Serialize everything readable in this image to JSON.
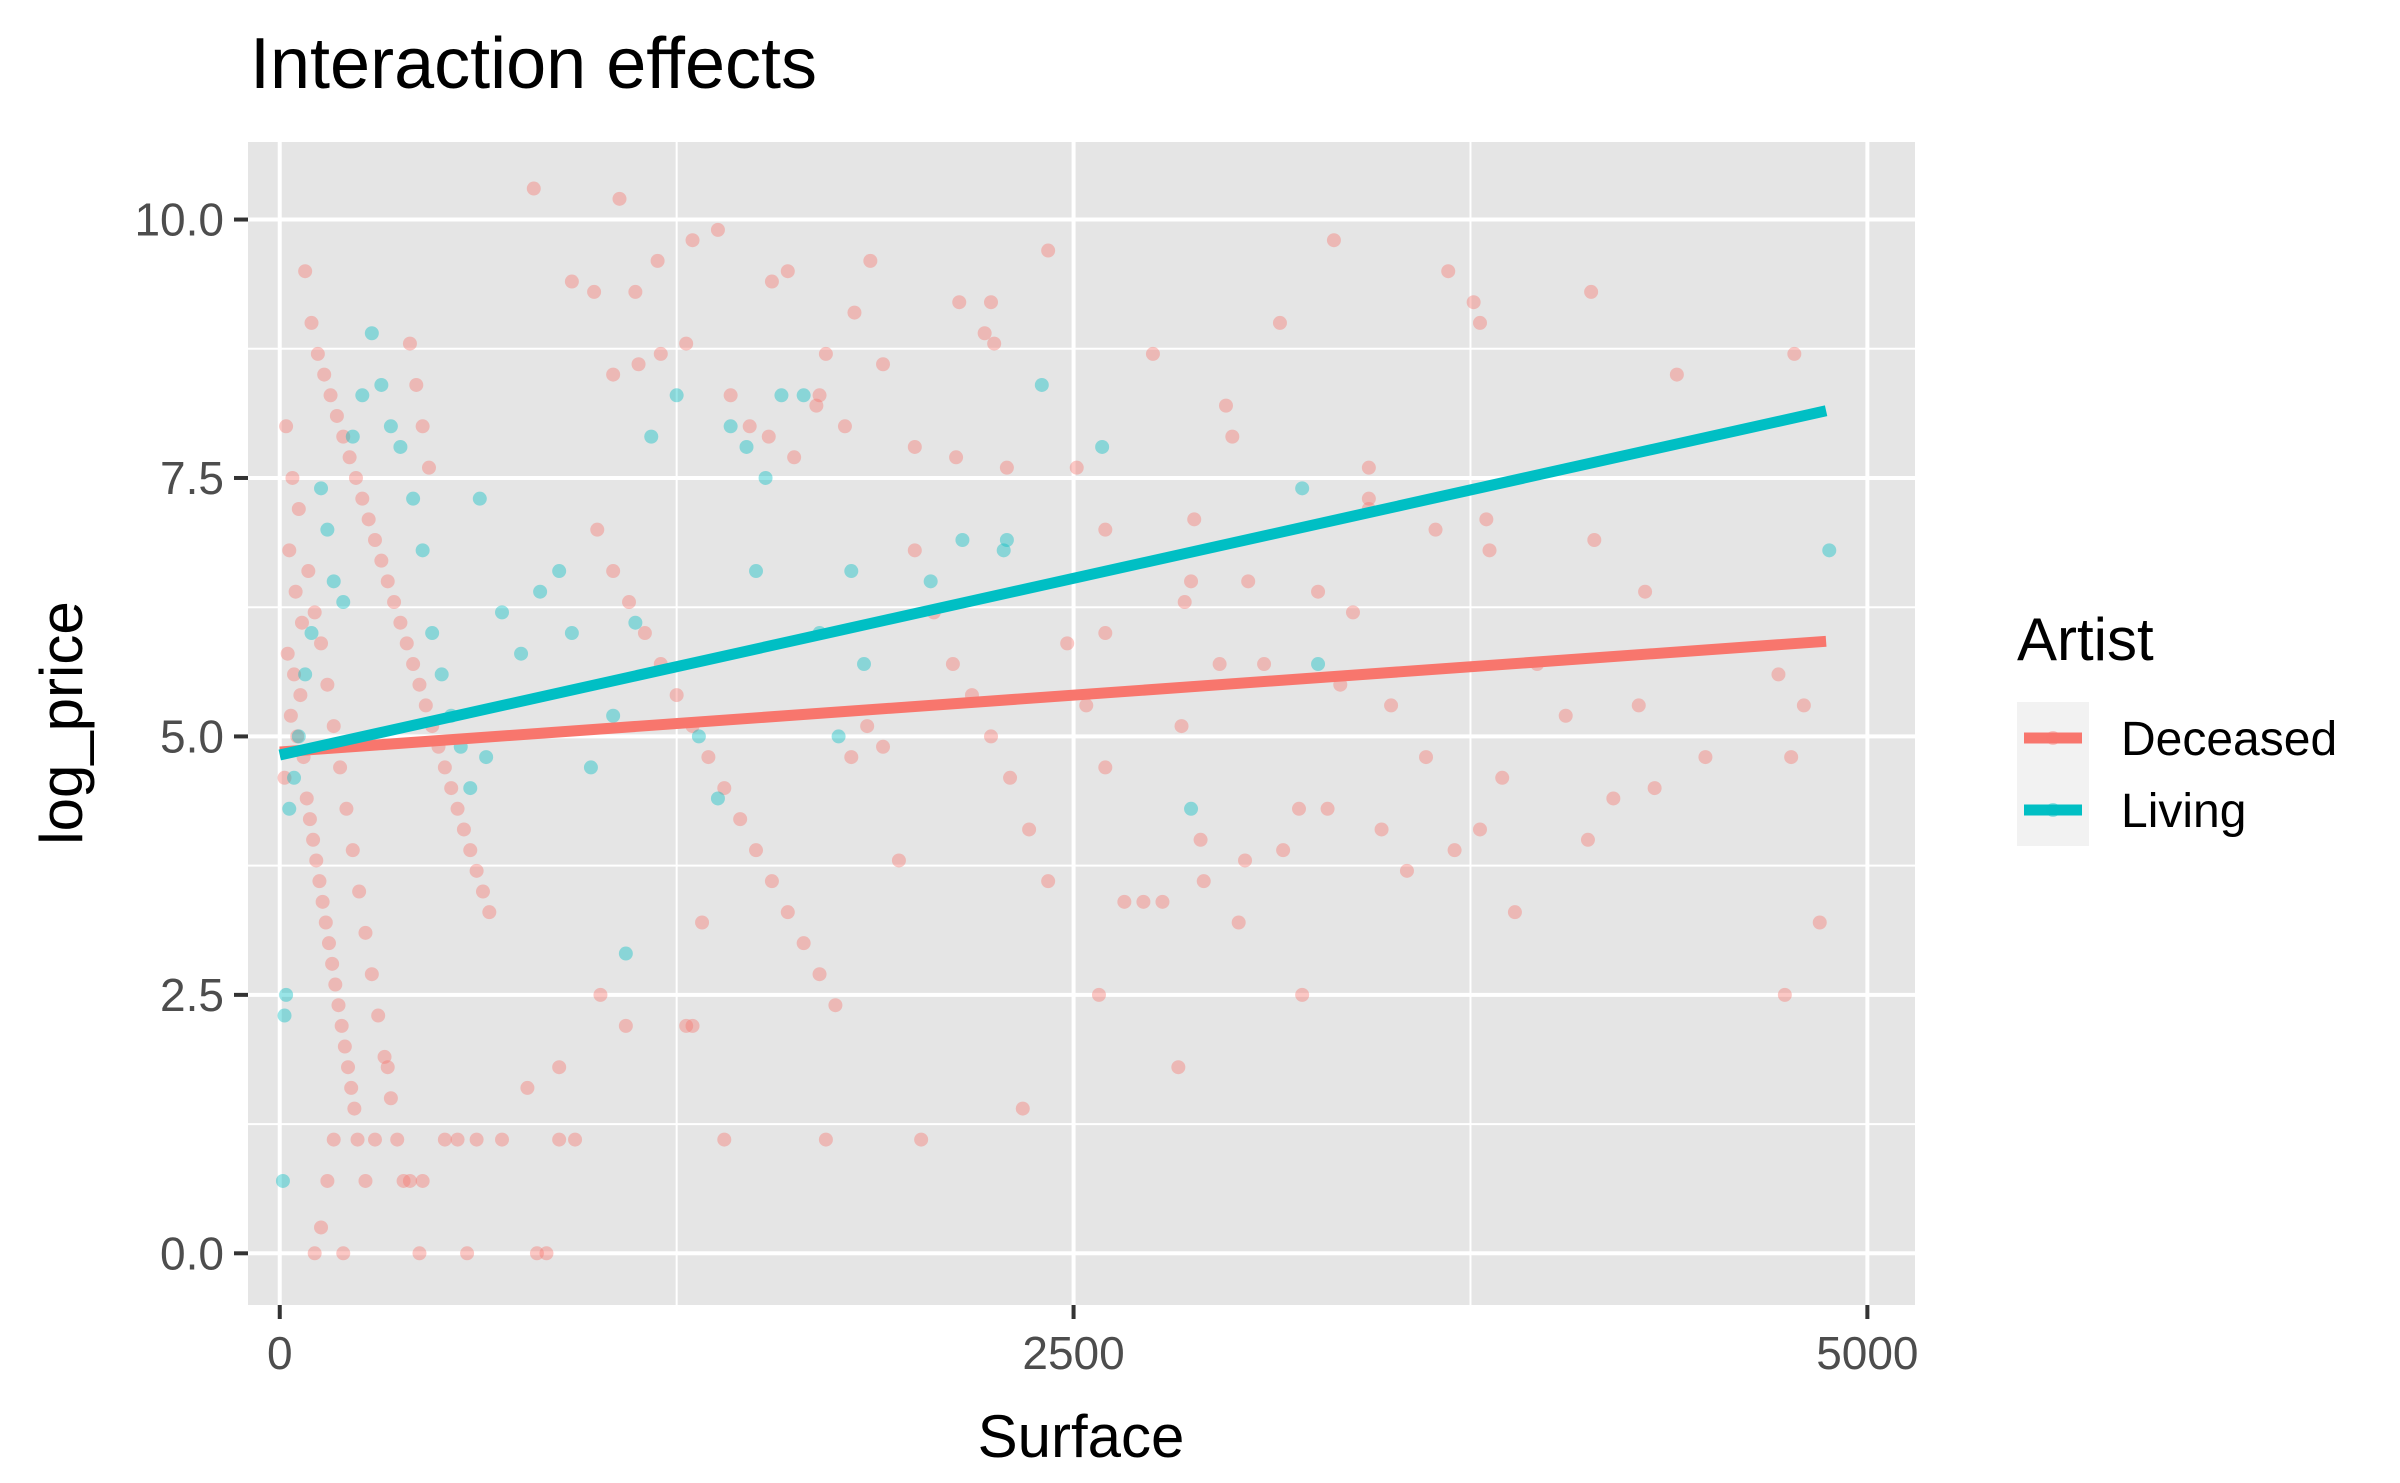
{
  "chart_data": {
    "type": "scatter",
    "title": "Interaction effects",
    "xlabel": "Surface",
    "ylabel": "log_price",
    "xlim": [
      -100,
      5150
    ],
    "ylim": [
      -0.5,
      10.75
    ],
    "x_ticks": [
      0,
      2500,
      5000
    ],
    "x_tick_labels": [
      "0",
      "2500",
      "5000"
    ],
    "y_ticks": [
      0,
      2.5,
      5,
      7.5,
      10
    ],
    "y_tick_labels": [
      "0.0",
      "2.5",
      "5.0",
      "7.5",
      "10.0"
    ],
    "grid": true,
    "panel_background": "#e5e5e5",
    "legend": {
      "title": "Artist",
      "position": "right",
      "entries": [
        {
          "label": "Deceased",
          "color": "#f8766d"
        },
        {
          "label": "Living",
          "color": "#00bfc4"
        }
      ]
    },
    "series": [
      {
        "name": "Deceased",
        "color": "#f8766d",
        "fit_line": {
          "x": [
            0,
            4870
          ],
          "y": [
            4.85,
            5.92
          ]
        },
        "points": [
          [
            20,
            8.0
          ],
          [
            40,
            7.5
          ],
          [
            60,
            7.2
          ],
          [
            30,
            6.8
          ],
          [
            50,
            6.4
          ],
          [
            70,
            6.1
          ],
          [
            25,
            5.8
          ],
          [
            45,
            5.6
          ],
          [
            65,
            5.4
          ],
          [
            35,
            5.2
          ],
          [
            55,
            5.0
          ],
          [
            75,
            4.8
          ],
          [
            15,
            4.6
          ],
          [
            85,
            4.4
          ],
          [
            95,
            4.2
          ],
          [
            105,
            4.0
          ],
          [
            115,
            3.8
          ],
          [
            125,
            3.6
          ],
          [
            135,
            3.4
          ],
          [
            145,
            3.2
          ],
          [
            155,
            3.0
          ],
          [
            165,
            2.8
          ],
          [
            175,
            2.6
          ],
          [
            185,
            2.4
          ],
          [
            195,
            2.2
          ],
          [
            205,
            2.0
          ],
          [
            215,
            1.8
          ],
          [
            225,
            1.6
          ],
          [
            235,
            1.4
          ],
          [
            245,
            1.1
          ],
          [
            80,
            9.5
          ],
          [
            100,
            9.0
          ],
          [
            120,
            8.7
          ],
          [
            140,
            8.5
          ],
          [
            160,
            8.3
          ],
          [
            180,
            8.1
          ],
          [
            200,
            7.9
          ],
          [
            220,
            7.7
          ],
          [
            240,
            7.5
          ],
          [
            260,
            7.3
          ],
          [
            280,
            7.1
          ],
          [
            300,
            6.9
          ],
          [
            320,
            6.7
          ],
          [
            340,
            6.5
          ],
          [
            360,
            6.3
          ],
          [
            380,
            6.1
          ],
          [
            400,
            5.9
          ],
          [
            420,
            5.7
          ],
          [
            440,
            5.5
          ],
          [
            460,
            5.3
          ],
          [
            480,
            5.1
          ],
          [
            500,
            4.9
          ],
          [
            520,
            4.7
          ],
          [
            540,
            4.5
          ],
          [
            560,
            4.3
          ],
          [
            580,
            4.1
          ],
          [
            600,
            3.9
          ],
          [
            620,
            3.7
          ],
          [
            640,
            3.5
          ],
          [
            660,
            3.3
          ],
          [
            90,
            6.6
          ],
          [
            110,
            6.2
          ],
          [
            130,
            5.9
          ],
          [
            150,
            5.5
          ],
          [
            170,
            5.1
          ],
          [
            190,
            4.7
          ],
          [
            210,
            4.3
          ],
          [
            230,
            3.9
          ],
          [
            250,
            3.5
          ],
          [
            270,
            3.1
          ],
          [
            290,
            2.7
          ],
          [
            310,
            2.3
          ],
          [
            330,
            1.9
          ],
          [
            350,
            1.5
          ],
          [
            370,
            1.1
          ],
          [
            390,
            0.7
          ],
          [
            410,
            8.8
          ],
          [
            430,
            8.4
          ],
          [
            450,
            8.0
          ],
          [
            470,
            7.6
          ],
          [
            110,
            0.0
          ],
          [
            130,
            0.25
          ],
          [
            150,
            0.7
          ],
          [
            170,
            1.1
          ],
          [
            200,
            0.0
          ],
          [
            440,
            0.0
          ],
          [
            590,
            0.0
          ],
          [
            810,
            0.0
          ],
          [
            840,
            0.0
          ],
          [
            270,
            0.7
          ],
          [
            300,
            1.1
          ],
          [
            340,
            1.8
          ],
          [
            410,
            0.7
          ],
          [
            450,
            0.7
          ],
          [
            520,
            1.1
          ],
          [
            560,
            1.1
          ],
          [
            620,
            1.1
          ],
          [
            700,
            1.1
          ],
          [
            880,
            1.1
          ],
          [
            930,
            1.1
          ],
          [
            800,
            10.3
          ],
          [
            1070,
            10.2
          ],
          [
            920,
            9.4
          ],
          [
            990,
            9.3
          ],
          [
            1120,
            9.3
          ],
          [
            1190,
            9.6
          ],
          [
            1300,
            9.8
          ],
          [
            1380,
            9.9
          ],
          [
            1550,
            9.4
          ],
          [
            1600,
            9.5
          ],
          [
            1860,
            9.6
          ],
          [
            2240,
            9.2
          ],
          [
            2420,
            9.7
          ],
          [
            2220,
            8.9
          ],
          [
            2250,
            8.8
          ],
          [
            2140,
            9.2
          ],
          [
            1810,
            9.1
          ],
          [
            1720,
            8.7
          ],
          [
            1700,
            8.3
          ],
          [
            1690,
            8.2
          ],
          [
            1050,
            8.5
          ],
          [
            1130,
            8.6
          ],
          [
            1200,
            8.7
          ],
          [
            1280,
            8.8
          ],
          [
            1420,
            8.3
          ],
          [
            1480,
            8.0
          ],
          [
            1540,
            7.9
          ],
          [
            1620,
            7.7
          ],
          [
            1780,
            8.0
          ],
          [
            1900,
            8.6
          ],
          [
            2000,
            7.8
          ],
          [
            2130,
            7.7
          ],
          [
            2290,
            7.6
          ],
          [
            2510,
            7.6
          ],
          [
            2600,
            7.0
          ],
          [
            2750,
            8.7
          ],
          [
            2980,
            8.2
          ],
          [
            3000,
            7.9
          ],
          [
            3150,
            9.0
          ],
          [
            3320,
            9.8
          ],
          [
            3680,
            9.5
          ],
          [
            3760,
            9.2
          ],
          [
            3780,
            9.0
          ],
          [
            4130,
            9.3
          ],
          [
            4400,
            8.5
          ],
          [
            4770,
            8.7
          ],
          [
            3430,
            7.6
          ],
          [
            3430,
            7.3
          ],
          [
            3430,
            7.2
          ],
          [
            3640,
            7.0
          ],
          [
            3800,
            7.1
          ],
          [
            3810,
            6.8
          ],
          [
            4140,
            6.9
          ],
          [
            4300,
            6.4
          ],
          [
            3270,
            6.4
          ],
          [
            3050,
            6.5
          ],
          [
            2850,
            6.3
          ],
          [
            2870,
            6.5
          ],
          [
            2880,
            7.1
          ],
          [
            2600,
            6.0
          ],
          [
            1000,
            7.0
          ],
          [
            1050,
            6.6
          ],
          [
            1100,
            6.3
          ],
          [
            1150,
            6.0
          ],
          [
            1200,
            5.7
          ],
          [
            1250,
            5.4
          ],
          [
            1300,
            5.1
          ],
          [
            1350,
            4.8
          ],
          [
            1400,
            4.5
          ],
          [
            1450,
            4.2
          ],
          [
            1500,
            3.9
          ],
          [
            1550,
            3.6
          ],
          [
            1600,
            3.3
          ],
          [
            1650,
            3.0
          ],
          [
            1700,
            2.7
          ],
          [
            1750,
            2.4
          ],
          [
            1800,
            4.8
          ],
          [
            1850,
            5.1
          ],
          [
            1900,
            4.9
          ],
          [
            1950,
            3.8
          ],
          [
            2000,
            6.8
          ],
          [
            2060,
            6.2
          ],
          [
            2120,
            5.7
          ],
          [
            2180,
            5.4
          ],
          [
            2240,
            5.0
          ],
          [
            2300,
            4.6
          ],
          [
            2360,
            4.1
          ],
          [
            2420,
            3.6
          ],
          [
            2480,
            5.9
          ],
          [
            2540,
            5.3
          ],
          [
            2600,
            4.7
          ],
          [
            2660,
            3.4
          ],
          [
            2720,
            3.4
          ],
          [
            2780,
            3.4
          ],
          [
            2840,
            5.1
          ],
          [
            2900,
            4.0
          ],
          [
            2960,
            5.7
          ],
          [
            3020,
            3.2
          ],
          [
            3100,
            5.7
          ],
          [
            3160,
            3.9
          ],
          [
            3220,
            2.5
          ],
          [
            3300,
            4.3
          ],
          [
            3380,
            6.2
          ],
          [
            3470,
            4.1
          ],
          [
            3550,
            3.7
          ],
          [
            3610,
            4.8
          ],
          [
            3700,
            3.9
          ],
          [
            3780,
            4.1
          ],
          [
            3850,
            4.6
          ],
          [
            3890,
            3.3
          ],
          [
            3960,
            5.7
          ],
          [
            4050,
            5.2
          ],
          [
            4120,
            4.0
          ],
          [
            4200,
            4.4
          ],
          [
            4280,
            5.3
          ],
          [
            4330,
            4.5
          ],
          [
            4490,
            4.8
          ],
          [
            4720,
            5.6
          ],
          [
            4760,
            4.8
          ],
          [
            4850,
            3.2
          ],
          [
            4800,
            5.3
          ],
          [
            4740,
            2.5
          ],
          [
            3500,
            5.3
          ],
          [
            3340,
            5.5
          ],
          [
            3210,
            4.3
          ],
          [
            3040,
            3.8
          ],
          [
            2910,
            3.6
          ],
          [
            2830,
            1.8
          ],
          [
            2580,
            2.5
          ],
          [
            2340,
            1.4
          ],
          [
            2020,
            1.1
          ],
          [
            1720,
            1.1
          ],
          [
            1400,
            1.1
          ],
          [
            1280,
            2.2
          ],
          [
            1300,
            2.2
          ],
          [
            1330,
            3.2
          ],
          [
            1090,
            2.2
          ],
          [
            1010,
            2.5
          ],
          [
            880,
            1.8
          ],
          [
            780,
            1.6
          ]
        ]
      },
      {
        "name": "Living",
        "color": "#00bfc4",
        "fit_line": {
          "x": [
            0,
            4870
          ],
          "y": [
            4.82,
            8.15
          ]
        },
        "points": [
          [
            10,
            0.7
          ],
          [
            15,
            2.3
          ],
          [
            20,
            2.5
          ],
          [
            30,
            4.3
          ],
          [
            45,
            4.6
          ],
          [
            60,
            5.0
          ],
          [
            80,
            5.6
          ],
          [
            100,
            6.0
          ],
          [
            130,
            7.4
          ],
          [
            150,
            7.0
          ],
          [
            170,
            6.5
          ],
          [
            200,
            6.3
          ],
          [
            230,
            7.9
          ],
          [
            260,
            8.3
          ],
          [
            290,
            8.9
          ],
          [
            320,
            8.4
          ],
          [
            350,
            8.0
          ],
          [
            380,
            7.8
          ],
          [
            420,
            7.3
          ],
          [
            450,
            6.8
          ],
          [
            480,
            6.0
          ],
          [
            510,
            5.6
          ],
          [
            540,
            5.2
          ],
          [
            570,
            4.9
          ],
          [
            600,
            4.5
          ],
          [
            650,
            4.8
          ],
          [
            700,
            6.2
          ],
          [
            760,
            5.8
          ],
          [
            820,
            6.4
          ],
          [
            880,
            6.6
          ],
          [
            920,
            6.0
          ],
          [
            980,
            4.7
          ],
          [
            1050,
            5.2
          ],
          [
            1090,
            2.9
          ],
          [
            1120,
            6.1
          ],
          [
            1170,
            7.9
          ],
          [
            1250,
            8.3
          ],
          [
            1320,
            5.0
          ],
          [
            1380,
            4.4
          ],
          [
            1420,
            8.0
          ],
          [
            1470,
            7.8
          ],
          [
            1500,
            6.6
          ],
          [
            1530,
            7.5
          ],
          [
            1580,
            8.3
          ],
          [
            1650,
            8.3
          ],
          [
            1700,
            6.0
          ],
          [
            1760,
            5.0
          ],
          [
            1800,
            6.6
          ],
          [
            1840,
            5.7
          ],
          [
            2050,
            6.5
          ],
          [
            2150,
            6.9
          ],
          [
            2290,
            6.9
          ],
          [
            2280,
            6.8
          ],
          [
            2400,
            8.4
          ],
          [
            2590,
            7.8
          ],
          [
            2870,
            4.3
          ],
          [
            3220,
            7.4
          ],
          [
            3270,
            5.7
          ],
          [
            4880,
            6.8
          ],
          [
            630,
            7.3
          ]
        ]
      }
    ]
  }
}
